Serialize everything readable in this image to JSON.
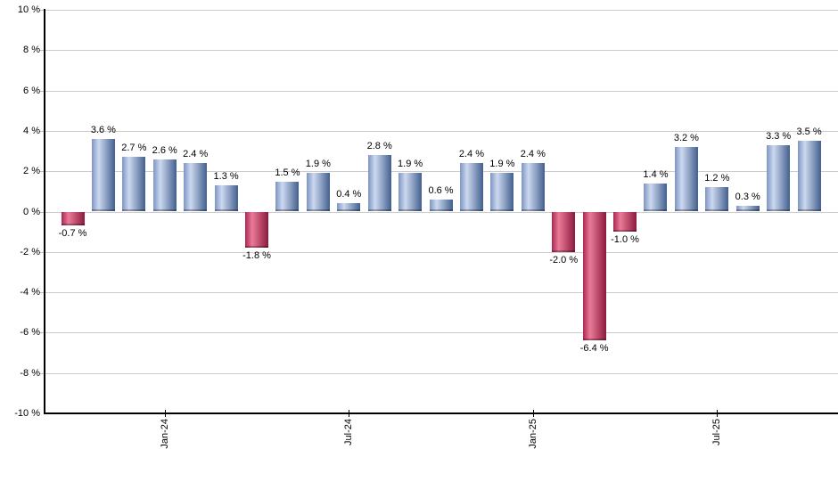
{
  "chart_data": {
    "type": "bar",
    "title": "",
    "unit": "%",
    "ylim": [
      -10,
      10
    ],
    "ytick_step": 2,
    "grid": true,
    "legend": "none",
    "y_tick_labels": [
      "10 %",
      "8 %",
      "6 %",
      "4 %",
      "2 %",
      "0 %",
      "-2 %",
      "-4 %",
      "-6 %",
      "-8 %",
      "-10 %"
    ],
    "bars": [
      {
        "value": -0.7,
        "label": "-0.7 %"
      },
      {
        "value": 3.6,
        "label": "3.6 %"
      },
      {
        "value": 2.7,
        "label": "2.7 %"
      },
      {
        "value": 2.6,
        "label": "2.6 %"
      },
      {
        "value": 2.4,
        "label": "2.4 %"
      },
      {
        "value": 1.3,
        "label": "1.3 %"
      },
      {
        "value": -1.8,
        "label": "-1.8 %"
      },
      {
        "value": 1.5,
        "label": "1.5 %"
      },
      {
        "value": 1.9,
        "label": "1.9 %"
      },
      {
        "value": 0.4,
        "label": "0.4 %"
      },
      {
        "value": 2.8,
        "label": "2.8 %"
      },
      {
        "value": 1.9,
        "label": "1.9 %"
      },
      {
        "value": 0.6,
        "label": "0.6 %"
      },
      {
        "value": 2.4,
        "label": "2.4 %"
      },
      {
        "value": 1.9,
        "label": "1.9 %"
      },
      {
        "value": 2.4,
        "label": "2.4 %"
      },
      {
        "value": -2.0,
        "label": "-2.0 %"
      },
      {
        "value": -6.4,
        "label": "-6.4 %"
      },
      {
        "value": -1.0,
        "label": "-1.0 %"
      },
      {
        "value": 1.4,
        "label": "1.4 %"
      },
      {
        "value": 3.2,
        "label": "3.2 %"
      },
      {
        "value": 1.2,
        "label": "1.2 %"
      },
      {
        "value": 0.3,
        "label": "0.3 %"
      },
      {
        "value": 3.3,
        "label": "3.3 %"
      },
      {
        "value": 3.5,
        "label": "3.5 %"
      }
    ],
    "x_ticks": [
      {
        "bar_index": 3,
        "label": "Jan-24"
      },
      {
        "bar_index": 9,
        "label": "Jul-24"
      },
      {
        "bar_index": 15,
        "label": "Jan-25"
      },
      {
        "bar_index": 21,
        "label": "Jul-25"
      }
    ],
    "colors": {
      "positive_bar_edge_left": "#7e94c2",
      "positive_bar_highlight": "#ccd9f0",
      "positive_bar_edge_right": "#42608e",
      "negative_bar_edge_left": "#aa2853",
      "negative_bar_highlight": "#ea7b97",
      "negative_bar_edge_right": "#8c1a3f",
      "gridline": "#cccccc",
      "axis": "#000000",
      "label_text": "#000000"
    }
  }
}
